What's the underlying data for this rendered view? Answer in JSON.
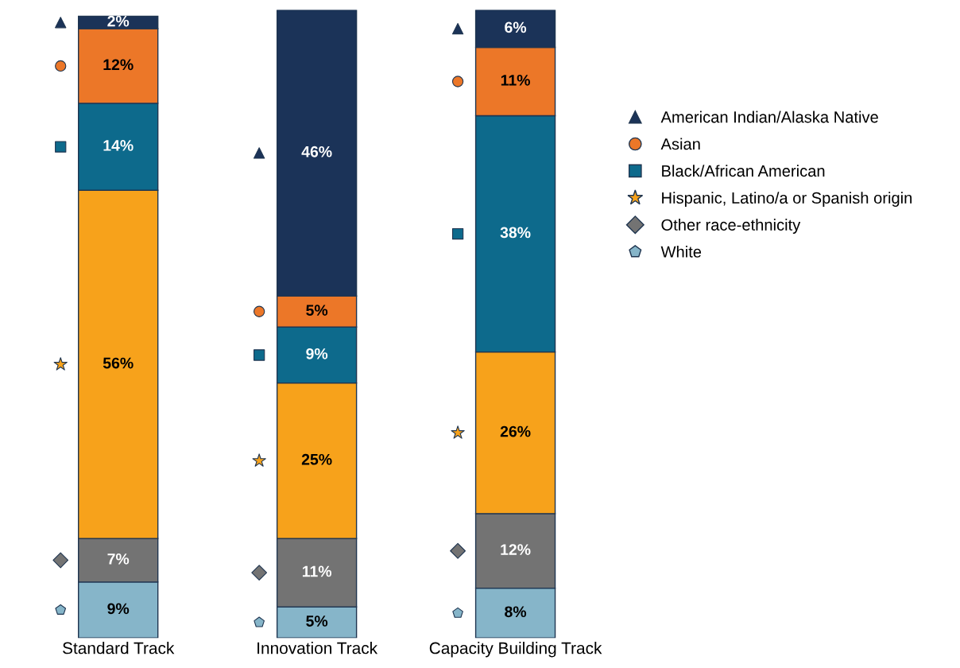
{
  "chart_data": {
    "type": "bar",
    "stacked": true,
    "legend": "right",
    "grid": false,
    "tick_labels": "x",
    "categories": [
      "Standard Track",
      "Innovation Track",
      "Capacity Building Track"
    ],
    "series": [
      {
        "name": "White",
        "color": "#86b5c9",
        "marker": "pentagon",
        "values": [
          9,
          5,
          8
        ],
        "value_labels": [
          "9%",
          "5%",
          "8%"
        ]
      },
      {
        "name": "Other race-ethnicity",
        "color": "#737373",
        "marker": "diamond",
        "values": [
          7,
          11,
          12
        ],
        "value_labels": [
          "7%",
          "11%",
          "12%"
        ]
      },
      {
        "name": "Hispanic, Latino/a or Spanish origin",
        "color": "#f7a21b",
        "marker": "star",
        "values": [
          56,
          25,
          26
        ],
        "value_labels": [
          "56%",
          "25%",
          "26%"
        ]
      },
      {
        "name": "Black/African American",
        "color": "#0d6a8c",
        "marker": "square",
        "values": [
          14,
          9,
          38
        ],
        "value_labels": [
          "14%",
          "9%",
          "38%"
        ]
      },
      {
        "name": "Asian",
        "color": "#ec7728",
        "marker": "circle",
        "values": [
          12,
          5,
          11
        ],
        "value_labels": [
          "12%",
          "5%",
          "11%"
        ]
      },
      {
        "name": "American Indian/Alaska Native",
        "color": "#1b3358",
        "marker": "triangle",
        "values": [
          2,
          46,
          6
        ],
        "value_labels": [
          "2%",
          "46%",
          "6%"
        ]
      }
    ]
  }
}
